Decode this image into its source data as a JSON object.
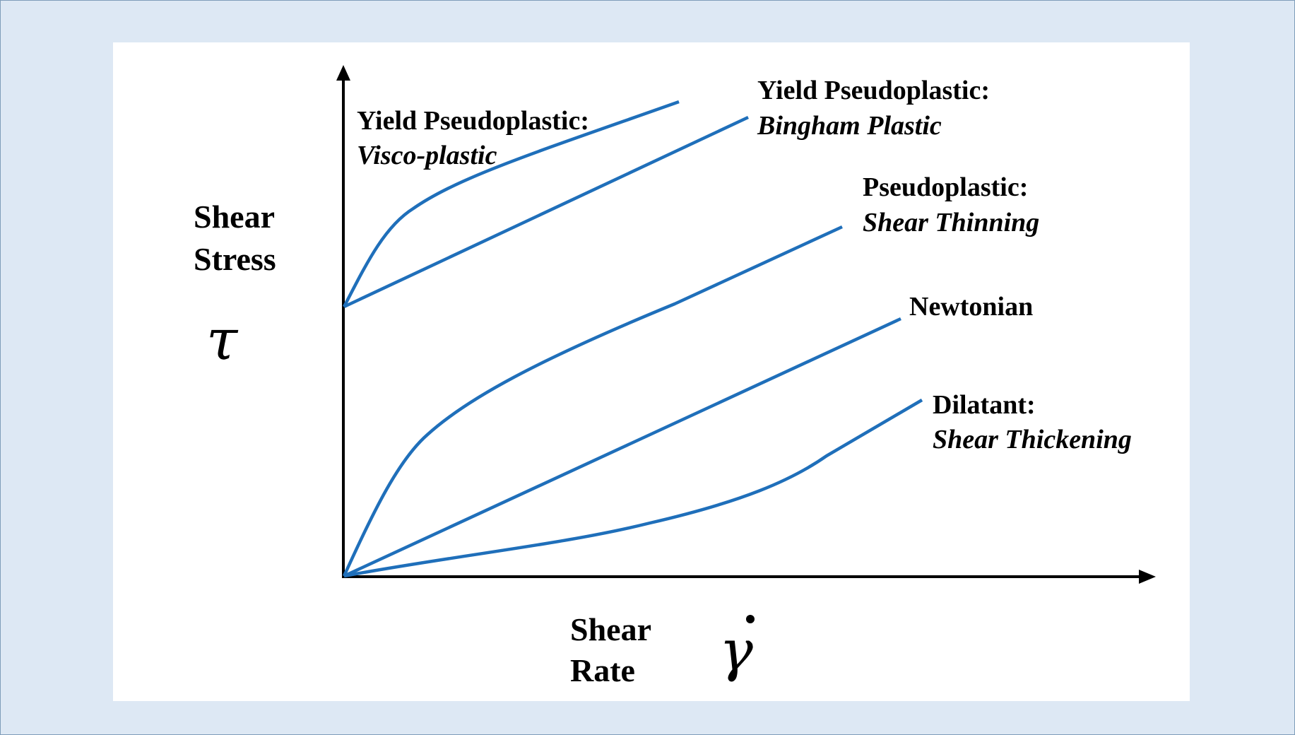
{
  "axes": {
    "y_label_line1": "Shear",
    "y_label_line2": "Stress",
    "y_symbol": "τ",
    "x_label_line1": "Shear",
    "x_label_line2": "Rate",
    "x_symbol": "γ"
  },
  "curves": [
    {
      "id": "visco-plastic",
      "title": "Yield Pseudoplastic:",
      "subtitle": "Visco-plastic"
    },
    {
      "id": "bingham-plastic",
      "title": "Yield Pseudoplastic:",
      "subtitle": "Bingham Plastic"
    },
    {
      "id": "shear-thinning",
      "title": "Pseudoplastic:",
      "subtitle": "Shear Thinning"
    },
    {
      "id": "newtonian",
      "title": "Newtonian",
      "subtitle": ""
    },
    {
      "id": "shear-thickening",
      "title": "Dilatant:",
      "subtitle": "Shear Thickening"
    }
  ],
  "colors": {
    "curve": "#1f6fba",
    "axis": "#000000",
    "background": "#dde8f4",
    "panel": "#ffffff"
  }
}
